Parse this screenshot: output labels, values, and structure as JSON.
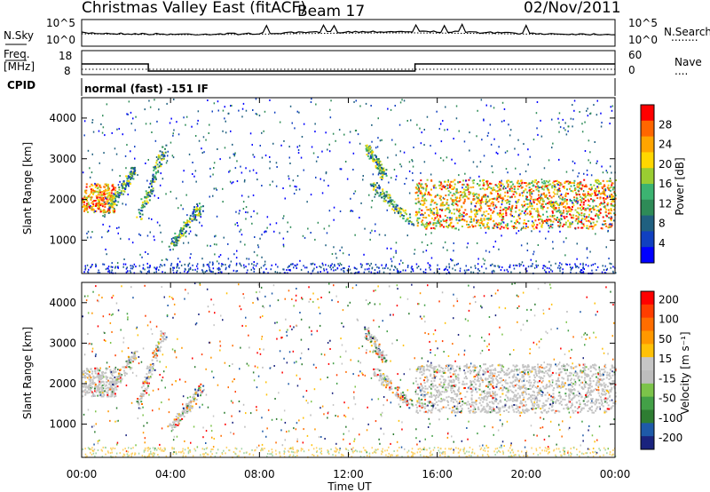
{
  "header": {
    "title": "Christmas Valley East (fitACF)",
    "beam": "Beam 17",
    "date": "02/Nov/2011"
  },
  "left_labels": {
    "nsky": "N.Sky",
    "freq": "Freq.",
    "freq_unit": "[MHz]",
    "cpid": "CPID"
  },
  "right_labels": {
    "nsearch": "N.Search",
    "nsearch_line": "........",
    "nave": "Nave",
    "nave_line": "...."
  },
  "cpid_text": "normal (fast) -151 IF",
  "x_axis": {
    "label": "Time UT",
    "ticks": [
      "00:00",
      "04:00",
      "08:00",
      "12:00",
      "16:00",
      "20:00",
      "00:00"
    ]
  },
  "chart_data": [
    {
      "type": "line",
      "name": "noise-panel",
      "y_left_ticks": [
        "10^5",
        "10^0"
      ],
      "y_right_ticks": [
        "10^5",
        "10^0"
      ],
      "series": [
        {
          "name": "N.Sky",
          "style": "solid"
        },
        {
          "name": "N.Search",
          "style": "dotted"
        }
      ]
    },
    {
      "type": "line",
      "name": "freq-panel",
      "y_left_ticks": [
        "18",
        "8"
      ],
      "y_right_ticks": [
        "60",
        "0"
      ],
      "x_hours": [
        0,
        3,
        3,
        15,
        15,
        24
      ],
      "freq_mhz": [
        14,
        14,
        10,
        10,
        14,
        14
      ],
      "nave": [
        12,
        12,
        12,
        12,
        12,
        12
      ]
    },
    {
      "type": "heatmap",
      "name": "power",
      "ylabel": "Slant Range [km]",
      "y_ticks": [
        "1000",
        "2000",
        "3000",
        "4000"
      ],
      "xlim_hours": [
        0,
        24
      ],
      "ylim_km": [
        180,
        4500
      ],
      "colorbar": {
        "label": "Power [dB]",
        "ticks": [
          "4",
          "8",
          "12",
          "16",
          "20",
          "24",
          "28"
        ],
        "colors": [
          "#0000ff",
          "#1040c0",
          "#206080",
          "#2e8b57",
          "#3cb371",
          "#9acd32",
          "#ffd700",
          "#ffa500",
          "#ff6600",
          "#ff0000"
        ]
      }
    },
    {
      "type": "heatmap",
      "name": "velocity",
      "ylabel": "Slant Range [km]",
      "y_ticks": [
        "1000",
        "2000",
        "3000",
        "4000"
      ],
      "xlim_hours": [
        0,
        24
      ],
      "ylim_km": [
        180,
        4500
      ],
      "colorbar": {
        "label": "Velocity [m s⁻¹]",
        "ticks": [
          "200",
          "100",
          "50",
          "15",
          "-15",
          "-50",
          "-100",
          "-200"
        ],
        "colors": [
          "#1a237e",
          "#1e5aa8",
          "#2e7d32",
          "#43a047",
          "#7cc34a",
          "#bdbdbd",
          "#c6c6c6",
          "#ffc107",
          "#ff9800",
          "#ff6d00",
          "#ff3d00",
          "#ff0000"
        ]
      }
    }
  ]
}
